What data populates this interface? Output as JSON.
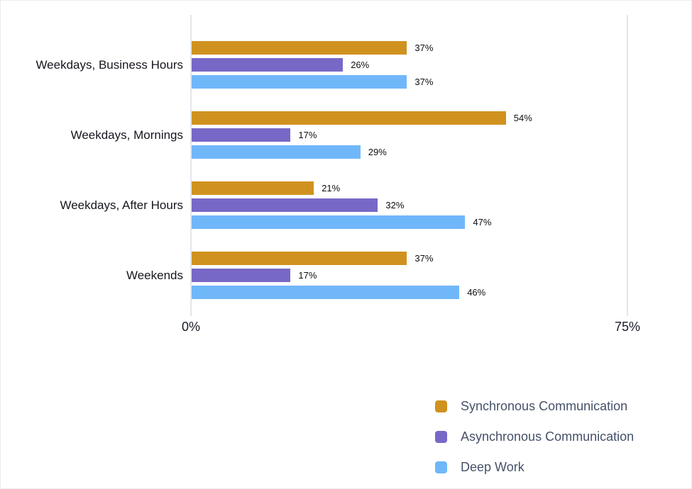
{
  "chart_data": {
    "type": "bar",
    "orientation": "horizontal",
    "title": "",
    "xlabel": "",
    "ylabel": "",
    "categories": [
      "Weekdays, Business Hours",
      "Weekdays, Mornings",
      "Weekdays, After Hours",
      "Weekends"
    ],
    "series": [
      {
        "name": "Synchronous Communication",
        "color": "#D0921F",
        "values": [
          37,
          54,
          21,
          37
        ]
      },
      {
        "name": "Asynchronous Communication",
        "color": "#7768C7",
        "values": [
          26,
          17,
          32,
          17
        ]
      },
      {
        "name": "Deep Work",
        "color": "#70B7FA",
        "values": [
          37,
          29,
          47,
          46
        ]
      }
    ],
    "value_suffix": "%",
    "data_labels": [
      [
        "37%",
        "26%",
        "37%"
      ],
      [
        "54%",
        "17%",
        "29%"
      ],
      [
        "21%",
        "32%",
        "47%"
      ],
      [
        "37%",
        "17%",
        "46%"
      ]
    ],
    "xlim": [
      0,
      75
    ],
    "x_ticks": [
      {
        "value": 0,
        "label": "0%"
      },
      {
        "value": 75,
        "label": "75%"
      }
    ],
    "grid": "vertical gridlines at ticks only",
    "legend_position": "bottom-right"
  },
  "colors": {
    "background": "#ffffff",
    "axis_line": "#E3E6EB",
    "category_label": "#16161F",
    "value_label": "#0E0E11",
    "tick_label": "#171C27",
    "legend_label": "#465169"
  }
}
